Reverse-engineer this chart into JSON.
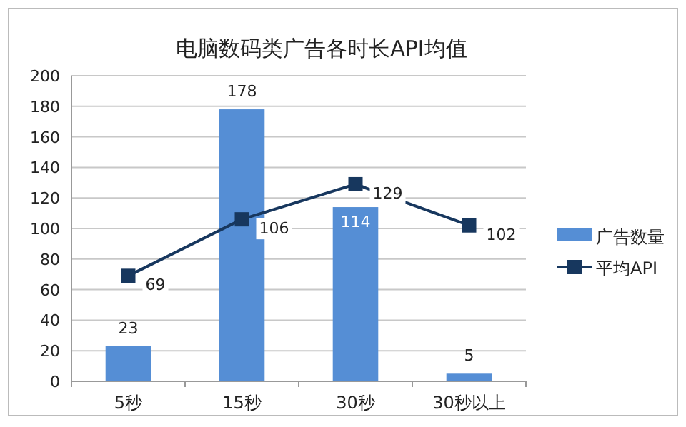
{
  "chart_data": {
    "type": "bar",
    "title": "电脑数码类广告各时长API均值",
    "categories": [
      "5秒",
      "15秒",
      "30秒",
      "30秒以上"
    ],
    "series": [
      {
        "name": "广告数量",
        "color": "#558ed5",
        "values": [
          23,
          178,
          114,
          5
        ]
      },
      {
        "name": "平均API",
        "type": "line",
        "color": "#17375e",
        "values": [
          69,
          106,
          129,
          102
        ]
      }
    ],
    "ylim": [
      0,
      200
    ],
    "yticks": [
      0,
      20,
      40,
      60,
      80,
      100,
      120,
      140,
      160,
      180,
      200
    ],
    "grid": "y",
    "legend": "right",
    "marker": "square",
    "data_labels": true
  }
}
